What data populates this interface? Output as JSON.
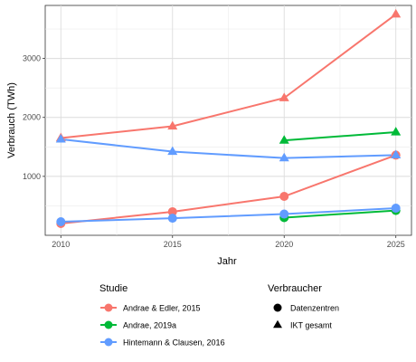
{
  "chart_data": {
    "type": "line",
    "title": "",
    "xlabel": "Jahr",
    "ylabel": "Verbrauch (TWh)",
    "x_ticks": [
      2010,
      2015,
      2020,
      2025
    ],
    "y_ticks": [
      1000,
      2000,
      3000
    ],
    "xlim": [
      2010,
      2025
    ],
    "ylim": [
      0,
      3900
    ],
    "grid": true,
    "legend_placement": "bottom",
    "legend_study_title": "Studie",
    "legend_consumer_title": "Verbraucher",
    "studies": [
      {
        "name": "Andrae & Edler, 2015",
        "color": "#F8766D"
      },
      {
        "name": "Andrae, 2019a",
        "color": "#00BA38"
      },
      {
        "name": "Hintemann & Clausen, 2016",
        "color": "#619CFF"
      }
    ],
    "consumers": [
      {
        "name": "Datenzentren",
        "shape": "circle"
      },
      {
        "name": "IKT gesamt",
        "shape": "triangle"
      }
    ],
    "series": [
      {
        "study": 0,
        "consumer": 1,
        "x": [
          2010,
          2015,
          2020,
          2025
        ],
        "values": [
          1650,
          1850,
          2330,
          3750
        ]
      },
      {
        "study": 0,
        "consumer": 0,
        "x": [
          2010,
          2015,
          2020,
          2025
        ],
        "values": [
          200,
          400,
          660,
          1360
        ]
      },
      {
        "study": 1,
        "consumer": 1,
        "x": [
          2020,
          2025
        ],
        "values": [
          1610,
          1750
        ]
      },
      {
        "study": 1,
        "consumer": 0,
        "x": [
          2020,
          2025
        ],
        "values": [
          300,
          420
        ]
      },
      {
        "study": 2,
        "consumer": 1,
        "x": [
          2010,
          2015,
          2020,
          2025
        ],
        "values": [
          1630,
          1420,
          1310,
          1360
        ]
      },
      {
        "study": 2,
        "consumer": 0,
        "x": [
          2010,
          2015,
          2020,
          2025
        ],
        "values": [
          230,
          290,
          360,
          460
        ]
      }
    ]
  }
}
